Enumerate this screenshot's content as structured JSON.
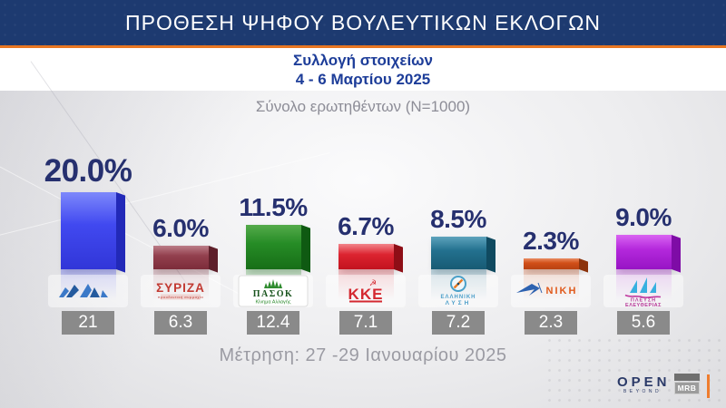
{
  "header": {
    "title": "ΠΡΟΘΕΣΗ ΨΗΦΟΥ ΒΟΥΛΕΥΤΙΚΩΝ ΕΚΛΟΓΩΝ"
  },
  "subheader": {
    "line1": "Συλλογή στοιχείων",
    "line2": "4 - 6 Μαρτίου 2025"
  },
  "sample_note": "Σύνολο ερωτηθέντων (N=1000)",
  "measurement_note": "Μέτρηση: 27 -29 Ιανουαρίου 2025",
  "footer": {
    "open_logo": "OPEN",
    "open_sub": "BEYOND",
    "mrb_logo": "MRB"
  },
  "colors": {
    "header_bg": "#1d3a70",
    "accent_orange": "#e87722",
    "subtitle_blue": "#1d3d99",
    "percent_navy": "#26306f",
    "value_box_gray": "#8a8a8a"
  },
  "chart_data": {
    "type": "bar",
    "title": "ΠΡΟΘΕΣΗ ΨΗΦΟΥ ΒΟΥΛΕΥΤΙΚΩΝ ΕΚΛΟΓΩΝ",
    "unit": "%",
    "ylim": [
      0,
      21
    ],
    "grid": false,
    "categories": [
      "ΝΔ",
      "ΣΥΡΙΖΑ",
      "ΠΑΣΟΚ - Κίνημα Αλλαγής",
      "ΚΚΕ",
      "ΕΛΛΗΝΙΚΗ ΛΥΣΗ",
      "ΝΙΚΗ",
      "ΠΛΕΥΣΗ ΕΛΕΥΘΕΡΙΑΣ"
    ],
    "series": [
      {
        "name": "Συλλογή στοιχείων 4 - 6 Μαρτίου 2025",
        "values": [
          20.0,
          6.0,
          11.5,
          6.7,
          8.5,
          2.3,
          9.0
        ]
      },
      {
        "name": "Μέτρηση: 27 -29 Ιανουαρίου 2025",
        "values": [
          21,
          6.3,
          12.4,
          7.1,
          7.2,
          2.3,
          5.6
        ]
      }
    ],
    "parties": [
      {
        "id": "nd",
        "name": "ΝΔ",
        "value": 20.0,
        "value_label": "20.0%",
        "previous": "21",
        "emphasis": true,
        "colors": {
          "light": "#7d88fb",
          "main": "#4149f0",
          "dark": "#3136d8",
          "side": "#2229b8",
          "refl": "rgba(65,73,240,0.33)"
        },
        "logo_text": {}
      },
      {
        "id": "syriza",
        "name": "ΣΥΡΙΖΑ",
        "value": 6.0,
        "value_label": "6.0%",
        "previous": "6.3",
        "emphasis": false,
        "colors": {
          "light": "#bb7d88",
          "main": "#93404e",
          "dark": "#7c2c3a",
          "side": "#5e1f2a",
          "refl": "rgba(147,64,78,0.30)"
        },
        "logo_text": {
          "main": "ΣΥΡΙΖΑ",
          "sub": "προοδευτική συμμαχία"
        }
      },
      {
        "id": "pasok",
        "name": "ΠΑΣΟΚ - Κίνημα Αλλαγής",
        "value": 11.5,
        "value_label": "11.5%",
        "previous": "12.4",
        "emphasis": false,
        "colors": {
          "light": "#55ab4b",
          "main": "#268c26",
          "dark": "#176e17",
          "side": "#0f5a12",
          "refl": "rgba(38,140,38,0.30)"
        },
        "logo_text": {
          "main": "ΠΑΣΟΚ",
          "sub": "Κίνημα Αλλαγής"
        }
      },
      {
        "id": "kke",
        "name": "ΚΚΕ",
        "value": 6.7,
        "value_label": "6.7%",
        "previous": "7.1",
        "emphasis": false,
        "colors": {
          "light": "#f2848a",
          "main": "#dc2430",
          "dark": "#c2121e",
          "side": "#8e0e16",
          "refl": "rgba(220,36,48,0.30)"
        },
        "logo_text": {
          "main": "ΚΚΕ"
        }
      },
      {
        "id": "ellysi",
        "name": "ΕΛΛΗΝΙΚΗ ΛΥΣΗ",
        "value": 8.5,
        "value_label": "8.5%",
        "previous": "7.2",
        "emphasis": false,
        "colors": {
          "light": "#5ea3bc",
          "main": "#23718f",
          "dark": "#175a74",
          "side": "#104a60",
          "refl": "rgba(35,113,143,0.30)"
        },
        "logo_text": {
          "main": "ΕΛΛΗΝΙΚΗ",
          "sub": "ΛΥΣΗ"
        }
      },
      {
        "id": "niki",
        "name": "ΝΙΚΗ",
        "value": 2.3,
        "value_label": "2.3%",
        "previous": "2.3",
        "emphasis": false,
        "colors": {
          "light": "#ea8c62",
          "main": "#d14f18",
          "dark": "#b84212",
          "side": "#8c330c",
          "refl": "rgba(209,79,24,0.30)"
        },
        "logo_text": {
          "main": "ΝΙΚΗ"
        }
      },
      {
        "id": "plefsi",
        "name": "ΠΛΕΥΣΗ ΕΛΕΥΘΕΡΙΑΣ",
        "value": 9.0,
        "value_label": "9.0%",
        "previous": "5.6",
        "emphasis": false,
        "colors": {
          "light": "#d964f2",
          "main": "#b428dc",
          "dark": "#9714c4",
          "side": "#7e0ca6",
          "refl": "rgba(180,40,220,0.32)"
        },
        "logo_text": {
          "main": "ΠΛΕΥΣΗ",
          "sub": "ΕΛΕΥΘΕΡΙΑΣ"
        }
      }
    ]
  }
}
